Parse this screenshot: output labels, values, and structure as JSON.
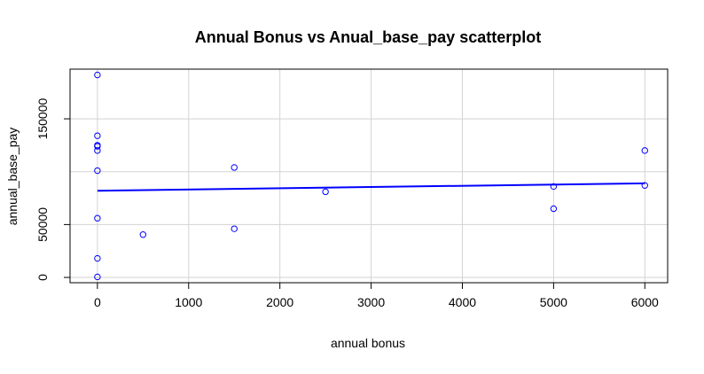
{
  "chart_data": {
    "type": "scatter",
    "title": "Annual Bonus vs Anual_base_pay scatterplot",
    "xlabel": "annual bonus",
    "ylabel": "annual_base_pay",
    "xlim": [
      -300,
      6250
    ],
    "ylim": [
      -5000,
      197000
    ],
    "x_ticks": [
      0,
      1000,
      2000,
      3000,
      4000,
      5000,
      6000
    ],
    "x_tick_labels": [
      "0",
      "1000",
      "2000",
      "3000",
      "4000",
      "5000",
      "6000"
    ],
    "y_ticks": [
      0,
      50000,
      150000
    ],
    "y_tick_labels": [
      "0",
      "50000",
      "150000"
    ],
    "grid_x": [
      0,
      1000,
      2000,
      3000,
      4000,
      5000,
      6000
    ],
    "grid_y": [
      0,
      50000,
      100000,
      150000
    ],
    "grid": true,
    "point_color": "#0000FF",
    "line_color": "#0000FF",
    "grid_color": "#D3D3D3",
    "series": [
      {
        "type": "scatter",
        "points": [
          {
            "x": 0,
            "y": 191500
          },
          {
            "x": 0,
            "y": 134000
          },
          {
            "x": 0,
            "y": 125000
          },
          {
            "x": 0,
            "y": 124000
          },
          {
            "x": 0,
            "y": 120000
          },
          {
            "x": 0,
            "y": 101000
          },
          {
            "x": 0,
            "y": 56000
          },
          {
            "x": 0,
            "y": 18000
          },
          {
            "x": 0,
            "y": 500
          },
          {
            "x": 500,
            "y": 40500
          },
          {
            "x": 1500,
            "y": 104000
          },
          {
            "x": 1500,
            "y": 46000
          },
          {
            "x": 2500,
            "y": 81000
          },
          {
            "x": 5000,
            "y": 86000
          },
          {
            "x": 5000,
            "y": 65000
          },
          {
            "x": 6000,
            "y": 120000
          },
          {
            "x": 6000,
            "y": 87000
          }
        ]
      },
      {
        "type": "line",
        "points": [
          {
            "x": 0,
            "y": 82000
          },
          {
            "x": 6000,
            "y": 89000
          }
        ]
      }
    ]
  }
}
